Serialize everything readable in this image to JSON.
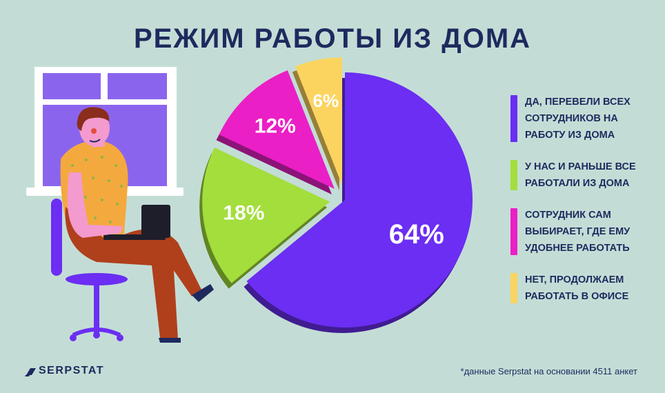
{
  "title": "РЕЖИМ РАБОТЫ ИЗ ДОМА",
  "chart_data": {
    "type": "pie",
    "categories": [
      "ДА, ПЕРЕВЕЛИ ВСЕХ СОТРУДНИКОВ НА РАБОТУ ИЗ ДОМА",
      "У НАС И РАНЬШЕ ВСЕ РАБОТАЛИ ИЗ ДОМА",
      "СОТРУДНИК САМ ВЫБИРАЕТ, ГДЕ ЕМУ УДОБНЕЕ РАБОТАТЬ",
      "НЕТ, ПРОДОЛЖАЕМ РАБОТАТЬ В ОФИСЕ"
    ],
    "values": [
      64,
      18,
      12,
      6
    ],
    "data_labels": [
      "64%",
      "18%",
      "12%",
      "6%"
    ],
    "colors": [
      "#6b2ef2",
      "#a3de3c",
      "#ea1fc6",
      "#fbd460"
    ],
    "legend_position": "right"
  },
  "legend": {
    "items": [
      {
        "label": "ДА, ПЕРЕВЕЛИ ВСЕХ СОТРУДНИКОВ НА РАБОТУ ИЗ ДОМА",
        "color": "#6b2ef2",
        "lines": 3
      },
      {
        "label": "У НАС И РАНЬШЕ ВСЕ РАБОТАЛИ ИЗ ДОМА",
        "color": "#a3de3c",
        "lines": 2
      },
      {
        "label": "СОТРУДНИК САМ ВЫБИРАЕТ, ГДЕ ЕМУ УДОБНЕЕ РАБОТАТЬ",
        "color": "#ea1fc6",
        "lines": 3
      },
      {
        "label": "НЕТ, ПРОДОЛЖАЕМ РАБОТАТЬ В ОФИСЕ",
        "color": "#fbd460",
        "lines": 2
      }
    ]
  },
  "logo": {
    "text": "SERPSTAT",
    "icon": "serpstat-logo-icon"
  },
  "footnote": "*данные Serpstat на основании 4511 анкет"
}
